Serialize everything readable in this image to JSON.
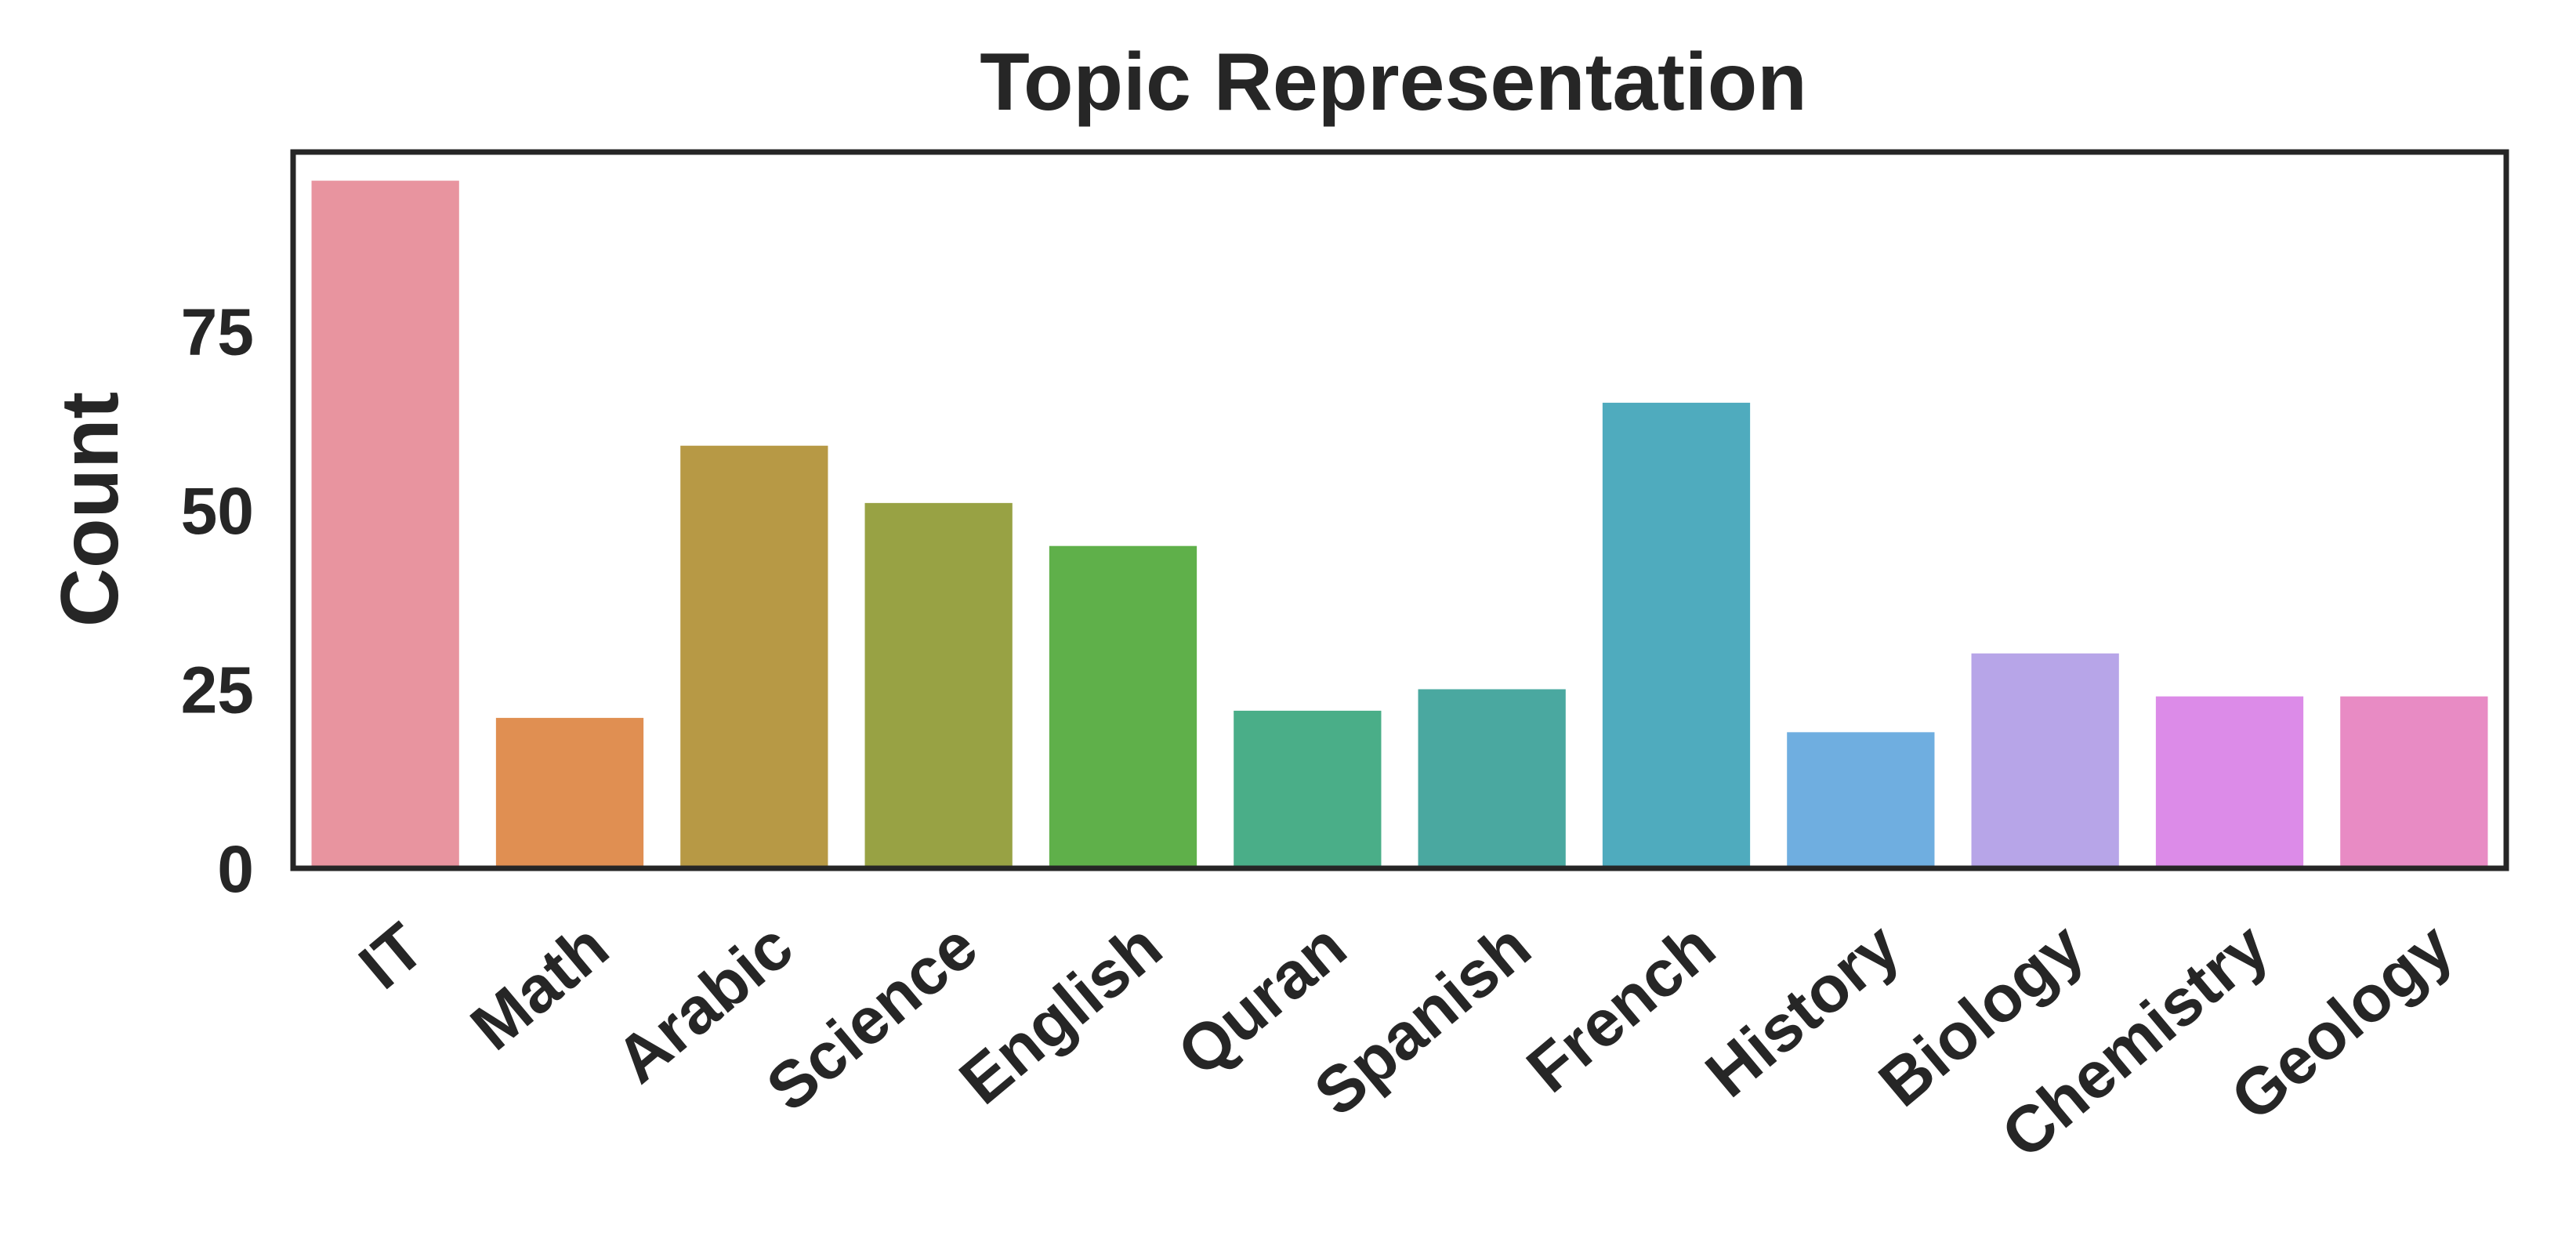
{
  "chart_data": {
    "type": "bar",
    "title": "Topic Representation",
    "xlabel": "",
    "ylabel": "Count",
    "ylim": [
      0,
      100
    ],
    "yticks": [
      "0",
      "25",
      "50",
      "75"
    ],
    "categories": [
      "IT",
      "Math",
      "Arabic",
      "Science",
      "English",
      "Quran",
      "Spanish",
      "French",
      "History",
      "Biology",
      "Chemistry",
      "Geology"
    ],
    "values": [
      96,
      21,
      59,
      51,
      45,
      22,
      25,
      65,
      19,
      30,
      24,
      24
    ],
    "colors": [
      "#E8949F",
      "#E08F52",
      "#B79945",
      "#98A244",
      "#5FB04A",
      "#4AAE88",
      "#4AA8A0",
      "#4FABBE",
      "#6FAEE0",
      "#B7A5E8",
      "#DC8BE8",
      "#E88BC4"
    ],
    "grid": false,
    "legend": "none"
  }
}
